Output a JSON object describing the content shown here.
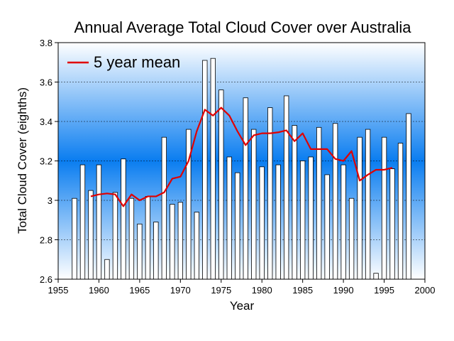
{
  "chart_data": {
    "type": "bar",
    "title": "Annual Average Total Cloud Cover over Australia",
    "xlabel": "Year",
    "ylabel": "Total Cloud Cover (eighths)",
    "xlim": [
      1955,
      2000
    ],
    "ylim": [
      2.6,
      3.8
    ],
    "xticks": [
      1955,
      1960,
      1965,
      1970,
      1975,
      1980,
      1985,
      1990,
      1995,
      2000
    ],
    "yticks": [
      2.6,
      2.8,
      3.0,
      3.2,
      3.4,
      3.6,
      3.8
    ],
    "ytick_labels": [
      "2.6",
      "2.8",
      "3",
      "3.2",
      "3.4",
      "3.6",
      "3.8"
    ],
    "grid": "horizontal dashed",
    "legend_position": "top-left",
    "bars": {
      "x": [
        1957,
        1958,
        1959,
        1960,
        1961,
        1962,
        1963,
        1964,
        1965,
        1966,
        1967,
        1968,
        1969,
        1970,
        1971,
        1972,
        1973,
        1974,
        1975,
        1976,
        1977,
        1978,
        1979,
        1980,
        1981,
        1982,
        1983,
        1984,
        1985,
        1986,
        1987,
        1988,
        1989,
        1990,
        1991,
        1992,
        1993,
        1994,
        1995,
        1996,
        1997,
        1998
      ],
      "values": [
        3.01,
        3.18,
        3.05,
        3.18,
        2.7,
        3.04,
        3.21,
        3.01,
        2.88,
        3.02,
        2.89,
        3.32,
        2.98,
        2.99,
        3.36,
        2.94,
        3.71,
        3.72,
        3.56,
        3.22,
        3.14,
        3.52,
        3.36,
        3.17,
        3.47,
        3.18,
        3.53,
        3.38,
        3.2,
        3.22,
        3.37,
        3.13,
        3.39,
        3.18,
        3.01,
        3.32,
        3.36,
        2.63,
        3.32,
        3.16,
        3.29,
        3.44
      ]
    },
    "series": [
      {
        "name": "5 year mean",
        "color": "#e00000",
        "x": [
          1959,
          1960,
          1961,
          1962,
          1963,
          1964,
          1965,
          1966,
          1967,
          1968,
          1969,
          1970,
          1971,
          1972,
          1973,
          1974,
          1975,
          1976,
          1977,
          1978,
          1979,
          1980,
          1981,
          1982,
          1983,
          1984,
          1985,
          1986,
          1987,
          1988,
          1989,
          1990,
          1991,
          1992,
          1993,
          1994,
          1995,
          1996
        ],
        "values": [
          3.02,
          3.03,
          3.035,
          3.03,
          2.97,
          3.03,
          3.0,
          3.02,
          3.02,
          3.04,
          3.11,
          3.12,
          3.2,
          3.35,
          3.46,
          3.43,
          3.47,
          3.43,
          3.35,
          3.28,
          3.33,
          3.34,
          3.34,
          3.345,
          3.355,
          3.3,
          3.34,
          3.26,
          3.26,
          3.26,
          3.21,
          3.2,
          3.25,
          3.1,
          3.13,
          3.155,
          3.155,
          3.165
        ]
      }
    ]
  }
}
